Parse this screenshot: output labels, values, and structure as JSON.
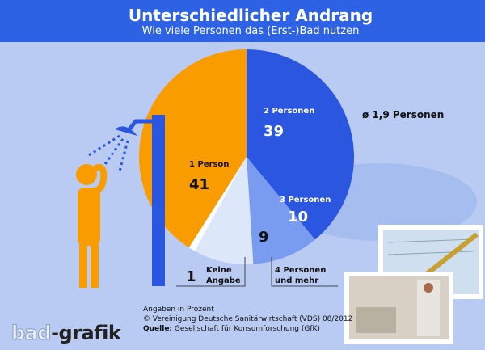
{
  "header": {
    "title": "Unterschiedlicher Andrang",
    "subtitle": "Wie viele Personen das (Erst-)Bad nutzen"
  },
  "chart_data": {
    "type": "pie",
    "title": "Unterschiedlicher Andrang",
    "subtitle": "Wie viele Personen das (Erst-)Bad nutzen",
    "unit": "Angaben in Prozent",
    "slices": [
      {
        "label": "2 Personen",
        "value": 39,
        "color": "#2a56e0"
      },
      {
        "label": "3 Personen",
        "value": 10,
        "color": "#7a9cf0"
      },
      {
        "label": "4 Personen und mehr",
        "value": 9,
        "color": "#dde7fa"
      },
      {
        "label": "Keine Angabe",
        "value": 1,
        "color": "#ffffff"
      },
      {
        "label": "1 Person",
        "value": 41,
        "color": "#f99c00"
      }
    ],
    "annotation": "ø 1,9 Personen"
  },
  "footer": {
    "unit": "Angaben in Prozent",
    "copyright": "© Vereinigung Deutsche Sanitärwirtschaft (VDS)  08/2012",
    "source_label": "Quelle:",
    "source": "Gesellschaft für Konsumforschung (GfK)"
  },
  "logo": {
    "part1": "bad",
    "part2": "-grafik"
  }
}
